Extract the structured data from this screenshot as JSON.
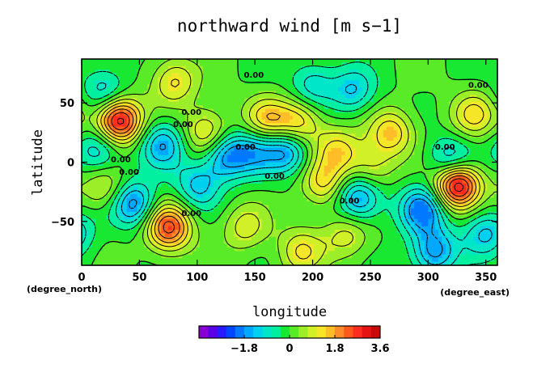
{
  "chart_data": {
    "type": "heatmap",
    "title": "northward wind [m s−1]",
    "xlabel": "longitude",
    "ylabel": "latitude",
    "x_unit": "(degree_north)",
    "y_unit": "(degree_east)",
    "xlim": [
      0,
      360
    ],
    "ylim": [
      -87,
      87
    ],
    "x_ticks": [
      0,
      50,
      100,
      150,
      200,
      250,
      300,
      350
    ],
    "y_ticks": [
      -50,
      0,
      50
    ],
    "x_tick_labels": [
      "0",
      "50",
      "100",
      "150",
      "200",
      "250",
      "300",
      "350"
    ],
    "y_tick_labels": [
      "−50",
      "0",
      "50"
    ],
    "contour_labels": [
      "0.00",
      "0.00",
      "0.00",
      "0.00",
      "0.00",
      "0.00",
      "0.00",
      "0.00",
      "0.00",
      "0.00",
      "0.00"
    ],
    "colorbar": {
      "range": [
        -3.6,
        3.6
      ],
      "tick_values": [
        -1.8,
        0,
        1.8,
        3.6
      ],
      "tick_labels": [
        "−1.8",
        "0",
        "1.8",
        "3.6"
      ],
      "colors": [
        "#8a00d4",
        "#5a00e6",
        "#2a18ff",
        "#0046ff",
        "#0078ff",
        "#00a8ff",
        "#00d0f0",
        "#00e6c8",
        "#00f0a0",
        "#19e832",
        "#5aeb28",
        "#9cee28",
        "#d2f028",
        "#f5e628",
        "#ffbe28",
        "#ff8c28",
        "#ff5a1e",
        "#ff2d1e",
        "#e61414",
        "#c80a0a"
      ]
    },
    "features": [
      {
        "lon": 32,
        "lat": 35,
        "v": 3.3
      },
      {
        "lon": 75,
        "lat": -55,
        "v": 2.6
      },
      {
        "lon": 325,
        "lat": -18,
        "v": 3.6
      },
      {
        "lon": 108,
        "lat": 25,
        "v": 1.4
      },
      {
        "lon": 160,
        "lat": 35,
        "v": 1.5
      },
      {
        "lon": 188,
        "lat": 33,
        "v": 1.6
      },
      {
        "lon": 268,
        "lat": 25,
        "v": 1.5
      },
      {
        "lon": 222,
        "lat": 10,
        "v": 1.3
      },
      {
        "lon": 210,
        "lat": -18,
        "v": 1.3
      },
      {
        "lon": 142,
        "lat": -55,
        "v": 1.0
      },
      {
        "lon": 80,
        "lat": 68,
        "v": 1.3
      },
      {
        "lon": 340,
        "lat": 40,
        "v": 1.3
      },
      {
        "lon": 230,
        "lat": -62,
        "v": 1.0
      },
      {
        "lon": 20,
        "lat": -22,
        "v": 1.0
      },
      {
        "lon": 250,
        "lat": -5,
        "v": 1.0
      },
      {
        "lon": 190,
        "lat": -75,
        "v": 1.2
      },
      {
        "lon": 70,
        "lat": 15,
        "v": -1.6
      },
      {
        "lon": 125,
        "lat": 5,
        "v": -1.8
      },
      {
        "lon": 45,
        "lat": -35,
        "v": -1.9
      },
      {
        "lon": 178,
        "lat": 10,
        "v": -1.7
      },
      {
        "lon": 240,
        "lat": -30,
        "v": -1.9
      },
      {
        "lon": 295,
        "lat": -40,
        "v": -2.0
      },
      {
        "lon": 320,
        "lat": 0,
        "v": -1.7
      },
      {
        "lon": 305,
        "lat": -75,
        "v": -1.8
      },
      {
        "lon": 20,
        "lat": 60,
        "v": -1.2
      },
      {
        "lon": 235,
        "lat": 60,
        "v": -1.2
      },
      {
        "lon": 15,
        "lat": 10,
        "v": -1.3
      },
      {
        "lon": 150,
        "lat": 10,
        "v": -1.3
      },
      {
        "lon": 100,
        "lat": -20,
        "v": -1.3
      },
      {
        "lon": 350,
        "lat": -60,
        "v": -1.3
      },
      {
        "lon": 200,
        "lat": 65,
        "v": -1.1
      }
    ]
  }
}
